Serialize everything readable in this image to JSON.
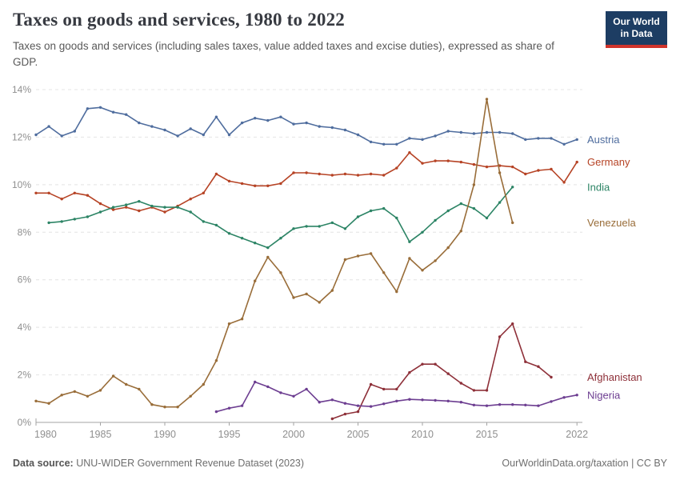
{
  "header": {
    "title": "Taxes on goods and services, 1980 to 2022",
    "subtitle": "Taxes on goods and services (including sales taxes, value added taxes and excise duties), expressed as share of GDP.",
    "logo": {
      "line1": "Our World",
      "line2": "in Data",
      "bg_color": "#1d3d63",
      "accent_color": "#d0342c"
    }
  },
  "footer": {
    "source_label": "Data source:",
    "source_text": " UNU-WIDER Government Revenue Dataset (2023)",
    "link": "OurWorldinData.org/taxation",
    "license": " | CC BY"
  },
  "chart_data": {
    "type": "line",
    "title": "Taxes on goods and services, 1980 to 2022",
    "xlabel": "",
    "ylabel": "Share of GDP",
    "unit": "%",
    "grid": "dashed-horizontal",
    "legend_position": "right-end-labels",
    "ylim": [
      0,
      14
    ],
    "yticks": [
      0,
      2,
      4,
      6,
      8,
      10,
      12,
      14
    ],
    "xlim": [
      1980,
      2022
    ],
    "xticks": [
      1980,
      1985,
      1990,
      1995,
      2000,
      2005,
      2010,
      2015,
      2022
    ],
    "series": [
      {
        "name": "Austria",
        "color": "#4f6d9e",
        "start_year": 1980,
        "values": [
          12.1,
          12.45,
          12.05,
          12.25,
          13.2,
          13.25,
          13.05,
          12.95,
          12.6,
          12.45,
          12.3,
          12.05,
          12.35,
          12.1,
          12.85,
          12.1,
          12.6,
          12.8,
          12.7,
          12.85,
          12.55,
          12.6,
          12.45,
          12.4,
          12.3,
          12.1,
          11.8,
          11.7,
          11.7,
          11.95,
          11.9,
          12.05,
          12.25,
          12.2,
          12.15,
          12.2,
          12.2,
          12.15,
          11.9,
          11.95,
          11.95,
          11.7,
          11.9
        ]
      },
      {
        "name": "Germany",
        "color": "#b64325",
        "start_year": 1980,
        "values": [
          9.65,
          9.65,
          9.4,
          9.65,
          9.55,
          9.2,
          8.95,
          9.05,
          8.9,
          9.05,
          8.85,
          9.1,
          9.4,
          9.65,
          10.45,
          10.15,
          10.05,
          9.95,
          9.95,
          10.05,
          10.5,
          10.5,
          10.45,
          10.4,
          10.45,
          10.4,
          10.45,
          10.4,
          10.7,
          11.35,
          10.9,
          11.0,
          11.0,
          10.95,
          10.85,
          10.75,
          10.8,
          10.75,
          10.45,
          10.6,
          10.65,
          10.1,
          10.95
        ]
      },
      {
        "name": "India",
        "color": "#2c8465",
        "start_year": 1981,
        "values": [
          8.4,
          8.45,
          8.55,
          8.65,
          8.85,
          9.05,
          9.15,
          9.3,
          9.1,
          9.05,
          9.05,
          8.85,
          8.45,
          8.3,
          7.95,
          7.75,
          7.55,
          7.35,
          7.75,
          8.15,
          8.25,
          8.25,
          8.4,
          8.15,
          8.65,
          8.9,
          9.0,
          8.6,
          7.6,
          8.0,
          8.5,
          8.9,
          9.2,
          9.0,
          8.6,
          9.25,
          9.9
        ]
      },
      {
        "name": "Venezuela",
        "color": "#996d39",
        "start_year": 1980,
        "values": [
          0.9,
          0.8,
          1.15,
          1.3,
          1.1,
          1.35,
          1.95,
          1.6,
          1.4,
          0.75,
          0.65,
          0.65,
          1.1,
          1.6,
          2.6,
          4.15,
          4.35,
          5.95,
          6.95,
          6.3,
          5.25,
          5.4,
          5.05,
          5.55,
          6.85,
          7.0,
          7.1,
          6.3,
          5.5,
          6.9,
          6.4,
          6.8,
          7.35,
          8.05,
          10.0,
          13.6,
          10.5,
          8.4
        ]
      },
      {
        "name": "Afghanistan",
        "color": "#8e3039",
        "start_year": 2003,
        "values": [
          0.15,
          0.35,
          0.45,
          1.6,
          1.4,
          1.4,
          2.1,
          2.45,
          2.45,
          2.05,
          1.65,
          1.35,
          1.35,
          3.6,
          4.15,
          2.55,
          2.35,
          1.9
        ]
      },
      {
        "name": "Nigeria",
        "color": "#6d3e91",
        "start_year": 1994,
        "values": [
          0.45,
          0.6,
          0.7,
          1.7,
          1.5,
          1.25,
          1.1,
          1.4,
          0.85,
          0.95,
          0.8,
          0.7,
          0.67,
          0.78,
          0.9,
          0.97,
          0.95,
          0.93,
          0.9,
          0.85,
          0.73,
          0.7,
          0.75,
          0.75,
          0.73,
          0.7,
          0.88,
          1.05,
          1.15
        ]
      }
    ]
  }
}
